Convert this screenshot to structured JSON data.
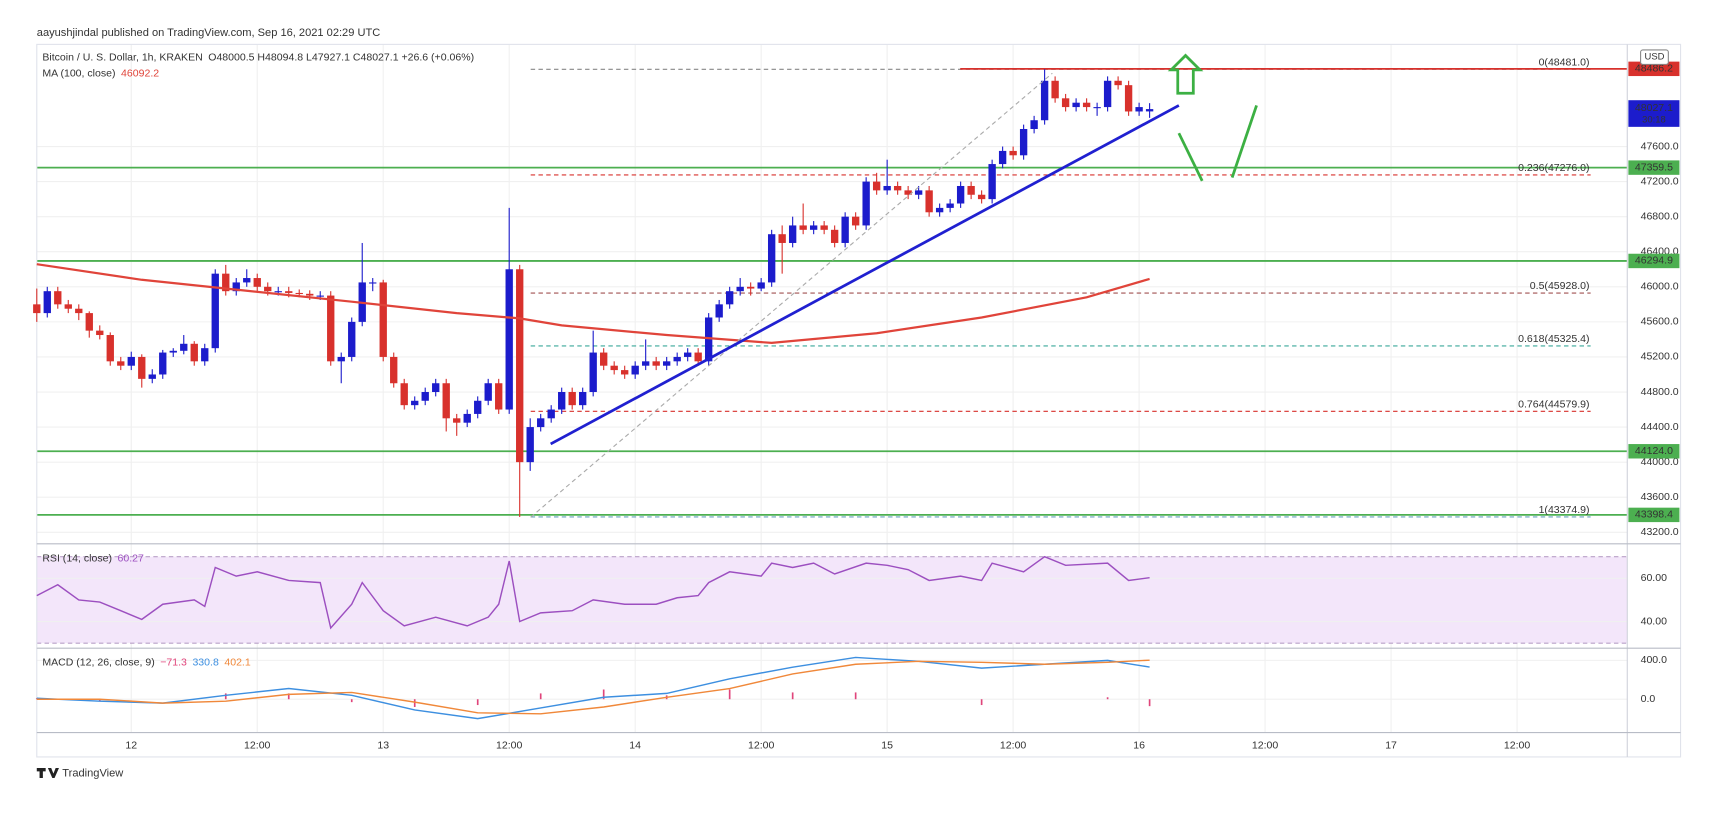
{
  "chart_data": {
    "type": "candlestick",
    "publisher": "aayushjindal published on TradingView.com, Sep 16, 2021 02:29 UTC",
    "symbol": "Bitcoin / U. S. Dollar, 1h, KRAKEN",
    "ohlc": "O48000.5 H48094.8 L47927.1 C48027.1 +26.6 (+0.06%)",
    "currency": "USD",
    "brand": "TradingView",
    "up_color": "#1c1ccc",
    "down_color": "#d8312c",
    "xlim": [
      0,
      151.5
    ],
    "xticks": [
      {
        "value": 9,
        "label": "12"
      },
      {
        "value": 21,
        "label": "12:00"
      },
      {
        "value": 33,
        "label": "13"
      },
      {
        "value": 45,
        "label": "12:00"
      },
      {
        "value": 57,
        "label": "14"
      },
      {
        "value": 69,
        "label": "12:00"
      },
      {
        "value": 81,
        "label": "15"
      },
      {
        "value": 93,
        "label": "12:00"
      },
      {
        "value": 105,
        "label": "16"
      },
      {
        "value": 117,
        "label": "12:00"
      },
      {
        "value": 129,
        "label": "17"
      },
      {
        "value": 141,
        "label": "12:00"
      }
    ],
    "ylim": [
      43068,
      48765
    ],
    "yticks": [
      {
        "value": 43200,
        "label": "43200.0"
      },
      {
        "value": 43600,
        "label": "43600.0"
      },
      {
        "value": 44000,
        "label": "44000.0"
      },
      {
        "value": 44400,
        "label": "44400.0"
      },
      {
        "value": 44800,
        "label": "44800.0"
      },
      {
        "value": 45200,
        "label": "45200.0"
      },
      {
        "value": 45600,
        "label": "45600.0"
      },
      {
        "value": 46000,
        "label": "46000.0"
      },
      {
        "value": 46400,
        "label": "46400.0"
      },
      {
        "value": 46800,
        "label": "46800.0"
      },
      {
        "value": 47200,
        "label": "47200.0"
      },
      {
        "value": 47600,
        "label": "47600.0"
      }
    ],
    "grid": true,
    "candles": [
      [
        45800,
        45980,
        45600,
        45700
      ],
      [
        45700,
        46000,
        45650,
        45950
      ],
      [
        45950,
        46000,
        45750,
        45800
      ],
      [
        45800,
        45850,
        45700,
        45750
      ],
      [
        45750,
        45800,
        45620,
        45700
      ],
      [
        45700,
        45720,
        45420,
        45500
      ],
      [
        45500,
        45560,
        45400,
        45450
      ],
      [
        45450,
        45480,
        45100,
        45150
      ],
      [
        45150,
        45200,
        45050,
        45100
      ],
      [
        45100,
        45260,
        45050,
        45200
      ],
      [
        45200,
        45230,
        44850,
        44950
      ],
      [
        44950,
        45060,
        44900,
        45000
      ],
      [
        45000,
        45280,
        44950,
        45250
      ],
      [
        45250,
        45300,
        45200,
        45270
      ],
      [
        45270,
        45450,
        45230,
        45350
      ],
      [
        45350,
        45380,
        45100,
        45150
      ],
      [
        45150,
        45350,
        45100,
        45300
      ],
      [
        45300,
        46200,
        45250,
        46150
      ],
      [
        46150,
        46250,
        45900,
        45950
      ],
      [
        45950,
        46100,
        45900,
        46050
      ],
      [
        46050,
        46200,
        46000,
        46100
      ],
      [
        46100,
        46150,
        45950,
        46000
      ],
      [
        46000,
        46050,
        45900,
        45950
      ],
      [
        45950,
        46000,
        45900,
        45950
      ],
      [
        45950,
        46000,
        45880,
        45930
      ],
      [
        45930,
        45970,
        45880,
        45920
      ],
      [
        45920,
        45960,
        45850,
        45900
      ],
      [
        45900,
        45950,
        45850,
        45900
      ],
      [
        45900,
        45950,
        45100,
        45150
      ],
      [
        45150,
        45250,
        44900,
        45200
      ],
      [
        45200,
        45650,
        45150,
        45600
      ],
      [
        45600,
        46500,
        45550,
        46050
      ],
      [
        46050,
        46100,
        45950,
        46050
      ],
      [
        46050,
        46080,
        45150,
        45200
      ],
      [
        45200,
        45250,
        44850,
        44900
      ],
      [
        44900,
        44950,
        44600,
        44650
      ],
      [
        44650,
        44750,
        44600,
        44700
      ],
      [
        44700,
        44850,
        44650,
        44800
      ],
      [
        44800,
        44950,
        44750,
        44900
      ],
      [
        44900,
        44950,
        44350,
        44500
      ],
      [
        44500,
        44550,
        44300,
        44450
      ],
      [
        44450,
        44600,
        44400,
        44550
      ],
      [
        44550,
        44750,
        44500,
        44700
      ],
      [
        44700,
        44950,
        44650,
        44900
      ],
      [
        44900,
        44950,
        44550,
        44600
      ],
      [
        44600,
        46900,
        44550,
        46200
      ],
      [
        46200,
        46250,
        43375,
        44000
      ],
      [
        44000,
        44500,
        43900,
        44400
      ],
      [
        44400,
        44550,
        44350,
        44500
      ],
      [
        44500,
        44650,
        44450,
        44600
      ],
      [
        44600,
        44850,
        44550,
        44800
      ],
      [
        44800,
        44850,
        44600,
        44650
      ],
      [
        44650,
        44850,
        44600,
        44800
      ],
      [
        44800,
        45500,
        44750,
        45250
      ],
      [
        45250,
        45300,
        45050,
        45100
      ],
      [
        45100,
        45150,
        45000,
        45050
      ],
      [
        45050,
        45100,
        44950,
        45000
      ],
      [
        45000,
        45150,
        44950,
        45100
      ],
      [
        45100,
        45400,
        45050,
        45150
      ],
      [
        45150,
        45200,
        45050,
        45100
      ],
      [
        45100,
        45200,
        45050,
        45150
      ],
      [
        45150,
        45250,
        45100,
        45200
      ],
      [
        45200,
        45300,
        45150,
        45250
      ],
      [
        45250,
        45300,
        45100,
        45150
      ],
      [
        45150,
        45700,
        45100,
        45650
      ],
      [
        45650,
        45850,
        45600,
        45800
      ],
      [
        45800,
        46000,
        45750,
        45950
      ],
      [
        45950,
        46100,
        45900,
        46000
      ],
      [
        46000,
        46050,
        45900,
        45980
      ],
      [
        45980,
        46100,
        45950,
        46050
      ],
      [
        46050,
        46650,
        46000,
        46600
      ],
      [
        46600,
        46700,
        46150,
        46500
      ],
      [
        46500,
        46800,
        46450,
        46700
      ],
      [
        46700,
        46950,
        46600,
        46650
      ],
      [
        46650,
        46750,
        46600,
        46700
      ],
      [
        46700,
        46750,
        46600,
        46650
      ],
      [
        46650,
        46700,
        46450,
        46500
      ],
      [
        46500,
        46850,
        46450,
        46800
      ],
      [
        46800,
        46850,
        46650,
        46700
      ],
      [
        46700,
        47250,
        46650,
        47200
      ],
      [
        47200,
        47300,
        47050,
        47100
      ],
      [
        47100,
        47450,
        47050,
        47150
      ],
      [
        47150,
        47200,
        47050,
        47100
      ],
      [
        47100,
        47150,
        47000,
        47050
      ],
      [
        47050,
        47150,
        47000,
        47100
      ],
      [
        47100,
        47150,
        46800,
        46850
      ],
      [
        46850,
        46950,
        46800,
        46900
      ],
      [
        46900,
        47000,
        46850,
        46950
      ],
      [
        46950,
        47200,
        46900,
        47150
      ],
      [
        47150,
        47200,
        47000,
        47050
      ],
      [
        47050,
        47100,
        46950,
        47000
      ],
      [
        47000,
        47450,
        46950,
        47400
      ],
      [
        47400,
        47600,
        47350,
        47550
      ],
      [
        47550,
        47600,
        47450,
        47500
      ],
      [
        47500,
        47850,
        47450,
        47800
      ],
      [
        47800,
        47950,
        47750,
        47900
      ],
      [
        47900,
        48481,
        47850,
        48350
      ],
      [
        48350,
        48400,
        48100,
        48150
      ],
      [
        48150,
        48200,
        48000,
        48050
      ],
      [
        48050,
        48150,
        48000,
        48100
      ],
      [
        48100,
        48150,
        48000,
        48050
      ],
      [
        48050,
        48100,
        47950,
        48050
      ],
      [
        48050,
        48400,
        48000,
        48350
      ],
      [
        48350,
        48400,
        48250,
        48300
      ],
      [
        48300,
        48350,
        47950,
        48000
      ],
      [
        48000,
        48100,
        47950,
        48050
      ],
      [
        48000.5,
        48094.8,
        47927.1,
        48027.1
      ]
    ],
    "ma": {
      "name": "MA (100, close)",
      "value_label": "46092.2",
      "color": "#e0443a",
      "x": [
        0,
        10,
        20,
        30,
        40,
        46,
        50,
        60,
        70,
        80,
        90,
        100,
        106
      ],
      "values": [
        46258,
        46080,
        45955,
        45830,
        45700,
        45640,
        45560,
        45450,
        45360,
        45470,
        45650,
        45880,
        46090
      ]
    },
    "levels": [
      {
        "value": 47359.5,
        "label": "47359.5",
        "color": "#4caf50"
      },
      {
        "value": 46294.9,
        "label": "46294.9",
        "color": "#4caf50"
      },
      {
        "value": 44124.0,
        "label": "44124.0",
        "color": "#4caf50"
      },
      {
        "value": 43398.4,
        "label": "43398.4",
        "color": "#4caf50"
      },
      {
        "value": 48486.2,
        "label": "48486.2",
        "color": "#d8312c"
      }
    ],
    "last_price": {
      "value": 48027.1,
      "label": "48027.1",
      "countdown": "30:18",
      "color": "#1c1ccc"
    },
    "fib_levels": [
      {
        "value": 48481.0,
        "label": "0(48481.0)",
        "color": "#888888"
      },
      {
        "value": 47276.0,
        "label": "0.236(47276.0)",
        "color": "#d8312c"
      },
      {
        "value": 45928.0,
        "label": "0.5(45928.0)",
        "color": "#a05050"
      },
      {
        "value": 45325.4,
        "label": "0.618(45325.4)",
        "color": "#3aa89a"
      },
      {
        "value": 44579.9,
        "label": "0.764(44579.9)",
        "color": "#d8312c"
      },
      {
        "value": 43374.9,
        "label": "1(43374.9)",
        "color": "#6aa0c0"
      }
    ],
    "rsi": {
      "name": "RSI (14, close)",
      "value_label": "60.27",
      "color": "#9c4fc0",
      "ylim": [
        28.7,
        74.9
      ],
      "band": [
        30,
        70
      ],
      "yticks": [
        {
          "value": 60,
          "label": "60.00"
        },
        {
          "value": 40,
          "label": "40.00"
        }
      ],
      "x": [
        0,
        2,
        4,
        6,
        8,
        10,
        12,
        15,
        16,
        17,
        19,
        21,
        24,
        27,
        28,
        30,
        31,
        33,
        35,
        38,
        41,
        43,
        44,
        45,
        46,
        48,
        51,
        53,
        56,
        59,
        61,
        63,
        64,
        66,
        69,
        70,
        72,
        74,
        76,
        79,
        81,
        83,
        85,
        88,
        90,
        91,
        94,
        96,
        98,
        102,
        104,
        106
      ],
      "values": [
        52,
        57,
        50,
        49,
        45,
        41,
        48,
        50,
        47,
        65,
        61,
        63,
        59,
        58,
        37,
        48,
        58,
        45,
        38,
        42,
        38,
        42,
        48,
        68,
        40,
        44,
        45,
        50,
        48,
        48,
        51,
        52,
        58,
        63,
        61,
        67,
        65,
        67,
        62,
        67,
        66,
        64,
        59,
        61,
        59,
        67,
        63,
        70,
        66,
        67,
        59,
        60.27
      ]
    },
    "macd": {
      "name": "MACD (12, 26, close, 9)",
      "hist_label": "−71.3",
      "macd_label": "330.8",
      "signal_label": "402.1",
      "hist_color": "#e0457b",
      "macd_color": "#3d8fe0",
      "signal_color": "#f0883a",
      "ylim": [
        -343,
        514
      ],
      "yticks": [
        {
          "value": 400,
          "label": "400.0"
        },
        {
          "value": 0,
          "label": "0.0"
        }
      ],
      "x": [
        0,
        6,
        12,
        18,
        24,
        30,
        36,
        42,
        48,
        54,
        60,
        66,
        72,
        78,
        84,
        90,
        96,
        102,
        106
      ],
      "macd": [
        10,
        -20,
        -40,
        40,
        110,
        40,
        -110,
        -200,
        -90,
        20,
        60,
        210,
        330,
        430,
        390,
        320,
        360,
        400,
        330.8
      ],
      "signal": [
        0,
        0,
        -40,
        -20,
        50,
        70,
        -30,
        -140,
        -150,
        -80,
        20,
        110,
        260,
        360,
        390,
        380,
        360,
        380,
        402.1
      ],
      "hist": [
        10,
        -20,
        0,
        60,
        60,
        -30,
        -80,
        -60,
        60,
        100,
        40,
        100,
        70,
        70,
        0,
        -60,
        0,
        20,
        -71.3
      ]
    }
  }
}
